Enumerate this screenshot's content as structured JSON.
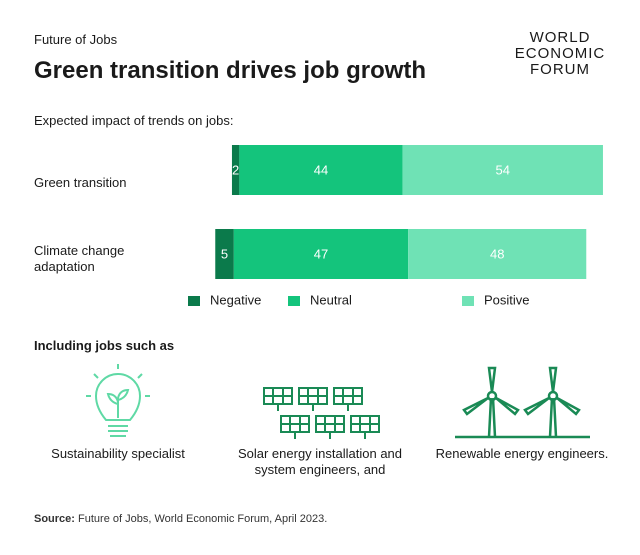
{
  "kicker": "Future of Jobs",
  "title": "Green transition drives job growth",
  "logo": [
    "WORLD",
    "ECONOMIC",
    "FORUM"
  ],
  "chart_data": {
    "type": "diverging-bar",
    "subtitle": "Expected impact of trends on jobs:",
    "categories": [
      "Green transition",
      "Climate change adaptation"
    ],
    "series": [
      {
        "name": "Negative",
        "color": "#0b7a4b",
        "values": [
          2,
          5
        ]
      },
      {
        "name": "Neutral",
        "color": "#14c47c",
        "values": [
          44,
          47
        ]
      },
      {
        "name": "Positive",
        "color": "#6fe2b5",
        "values": [
          54,
          48
        ]
      }
    ],
    "xlim": [
      0,
      100
    ]
  },
  "jobs": {
    "heading": "Including jobs such as",
    "items": [
      "Sustainability specialist",
      "Solar energy installation and system engineers, and",
      "Renewable energy engineers."
    ]
  },
  "source": {
    "label": "Source:",
    "text": "Future of Jobs, World Economic Forum, April 2023."
  }
}
